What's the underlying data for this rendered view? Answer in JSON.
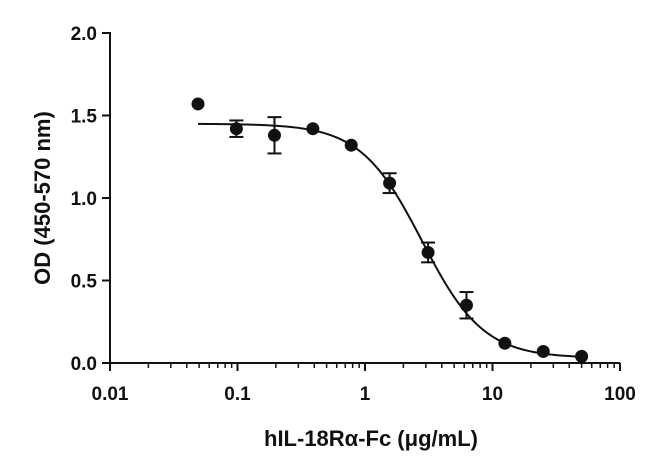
{
  "chart_data": {
    "type": "scatter",
    "title": "",
    "xlabel": "hIL-18Rα-Fc (μg/mL)",
    "ylabel": "OD (450-570 nm)",
    "x_scale": "log",
    "xlim": [
      0.01,
      100
    ],
    "ylim": [
      0.0,
      2.0
    ],
    "x_ticks": [
      0.01,
      0.1,
      1,
      10,
      100
    ],
    "x_tick_labels": [
      "0.01",
      "0.1",
      "1",
      "10",
      "100"
    ],
    "y_ticks": [
      0.0,
      0.5,
      1.0,
      1.5,
      2.0
    ],
    "y_tick_labels": [
      "0.0",
      "0.5",
      "1.0",
      "1.5",
      "2.0"
    ],
    "grid": false,
    "legend": "none",
    "color": "#111111",
    "series": [
      {
        "points": [
          {
            "x": 0.049,
            "y": 1.57,
            "err": 0
          },
          {
            "x": 0.098,
            "y": 1.42,
            "err": 0.05
          },
          {
            "x": 0.195,
            "y": 1.38,
            "err": 0.11
          },
          {
            "x": 0.39,
            "y": 1.42,
            "err": 0
          },
          {
            "x": 0.78,
            "y": 1.32,
            "err": 0
          },
          {
            "x": 1.56,
            "y": 1.09,
            "err": 0.06
          },
          {
            "x": 3.125,
            "y": 0.67,
            "err": 0.06
          },
          {
            "x": 6.25,
            "y": 0.35,
            "err": 0.08
          },
          {
            "x": 12.5,
            "y": 0.12,
            "err": 0
          },
          {
            "x": 25,
            "y": 0.07,
            "err": 0
          },
          {
            "x": 50,
            "y": 0.04,
            "err": 0
          }
        ],
        "fit": {
          "model": "4PL",
          "top": 1.45,
          "bottom": 0.03,
          "ec50": 2.8,
          "hill": 1.8,
          "x_range": [
            0.049,
            50
          ]
        }
      }
    ]
  }
}
